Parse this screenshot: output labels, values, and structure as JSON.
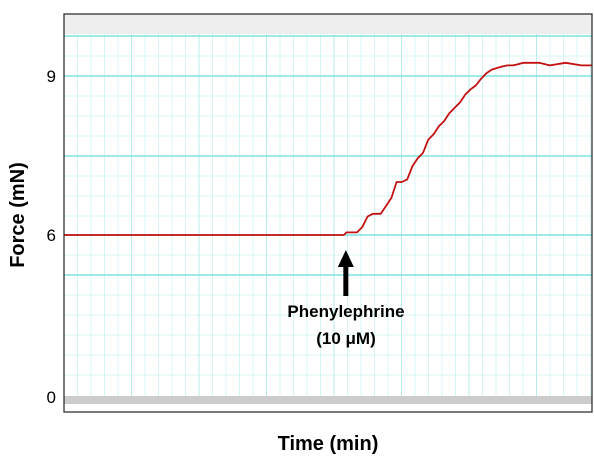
{
  "chart_data": {
    "type": "line",
    "title": "",
    "xlabel": "Time (min)",
    "ylabel": "Force (mN)",
    "yticks": [
      "0",
      "6",
      "9"
    ],
    "grid": true,
    "colors": {
      "line": "#c41010",
      "grid_major": "#7fe3e3",
      "grid_minor": "#cdf2f2",
      "band": "#eeeeee",
      "band_bottom": "#cccccc",
      "frame": "#222222"
    },
    "annotation": {
      "line1": "Phenylephrine",
      "line2": "(10 μM)",
      "x_fraction": 0.53,
      "shape": "up-arrow"
    },
    "series": [
      {
        "x_fraction": [
          0.0,
          0.53,
          0.535,
          0.545,
          0.555,
          0.565,
          0.575,
          0.585,
          0.6,
          0.62,
          0.63,
          0.64,
          0.65,
          0.66,
          0.67,
          0.68,
          0.69,
          0.7,
          0.71,
          0.72,
          0.73,
          0.74,
          0.75,
          0.76,
          0.77,
          0.78,
          0.79,
          0.8,
          0.81,
          0.82,
          0.83,
          0.84,
          0.85,
          0.86,
          0.87,
          0.88,
          0.9,
          0.92,
          0.95,
          0.98,
          1.0
        ],
        "values": [
          6.0,
          6.0,
          6.05,
          6.05,
          6.05,
          6.15,
          6.35,
          6.4,
          6.4,
          6.7,
          7.0,
          7.0,
          7.05,
          7.3,
          7.45,
          7.55,
          7.8,
          7.9,
          8.05,
          8.15,
          8.3,
          8.4,
          8.5,
          8.65,
          8.75,
          8.82,
          8.95,
          9.05,
          9.12,
          9.15,
          9.18,
          9.2,
          9.2,
          9.22,
          9.25,
          9.25,
          9.25,
          9.2,
          9.25,
          9.2,
          9.2
        ]
      }
    ]
  }
}
